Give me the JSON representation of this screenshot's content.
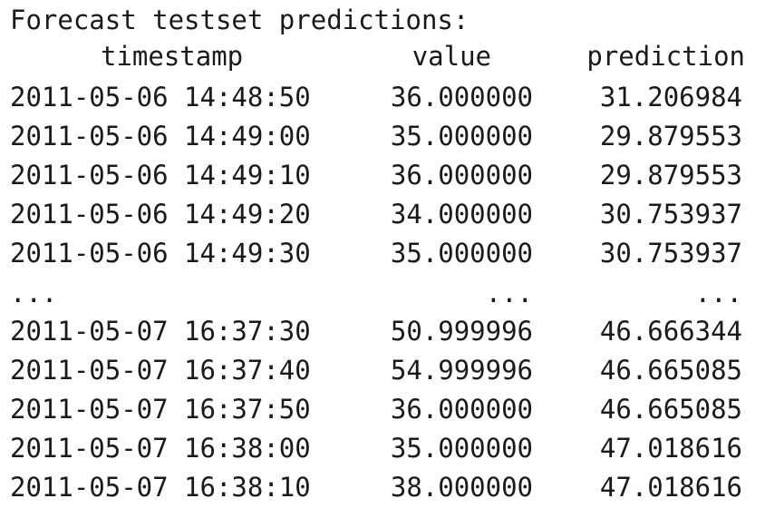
{
  "console": {
    "title": "Forecast testset predictions:",
    "headers": {
      "timestamp": "timestamp",
      "value": "value",
      "prediction": "prediction"
    },
    "rows": [
      {
        "timestamp": "2011-05-06 14:48:50",
        "value": "36.000000",
        "prediction": "31.206984"
      },
      {
        "timestamp": "2011-05-06 14:49:00",
        "value": "35.000000",
        "prediction": "29.879553"
      },
      {
        "timestamp": "2011-05-06 14:49:10",
        "value": "36.000000",
        "prediction": "29.879553"
      },
      {
        "timestamp": "2011-05-06 14:49:20",
        "value": "34.000000",
        "prediction": "30.753937"
      },
      {
        "timestamp": "2011-05-06 14:49:30",
        "value": "35.000000",
        "prediction": "30.753937"
      },
      {
        "timestamp": "...",
        "value": "...",
        "prediction": "..."
      },
      {
        "timestamp": "2011-05-07 16:37:30",
        "value": "50.999996",
        "prediction": "46.666344"
      },
      {
        "timestamp": "2011-05-07 16:37:40",
        "value": "54.999996",
        "prediction": "46.665085"
      },
      {
        "timestamp": "2011-05-07 16:37:50",
        "value": "36.000000",
        "prediction": "46.665085"
      },
      {
        "timestamp": "2011-05-07 16:38:00",
        "value": "35.000000",
        "prediction": "47.018616"
      },
      {
        "timestamp": "2011-05-07 16:38:10",
        "value": "38.000000",
        "prediction": "47.018616"
      }
    ]
  }
}
